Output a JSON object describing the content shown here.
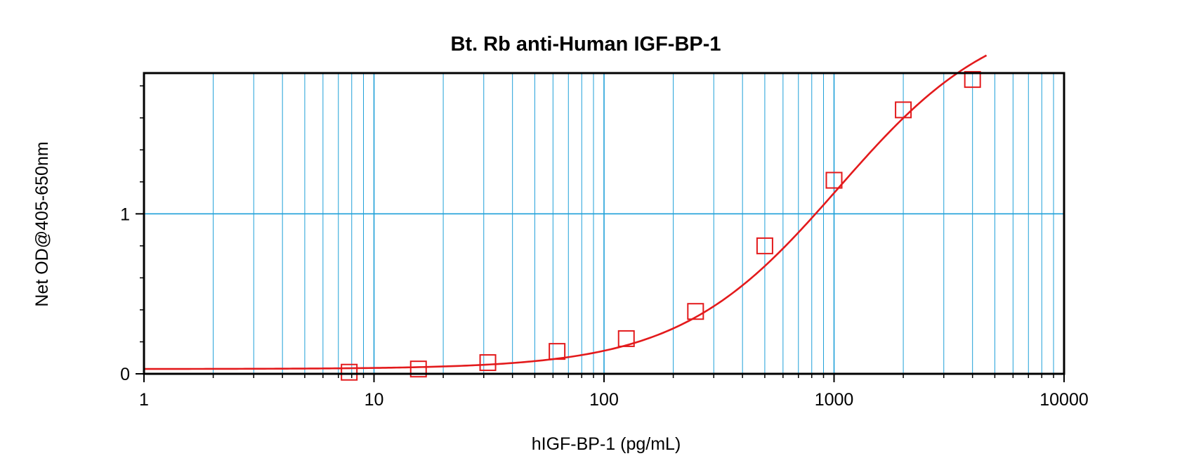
{
  "chart_data": {
    "type": "scatter",
    "title": "Bt. Rb anti-Human IGF-BP-1",
    "xlabel": "hIGF-BP-1 (pg/mL)",
    "ylabel": "Net OD@405-650nm",
    "x_scale": "log",
    "xlim": [
      1,
      10000
    ],
    "ylim": [
      0,
      1.88
    ],
    "x_ticks": [
      {
        "value": 1,
        "label": "1"
      },
      {
        "value": 10,
        "label": "10"
      },
      {
        "value": 100,
        "label": "100"
      },
      {
        "value": 1000,
        "label": "1000"
      },
      {
        "value": 10000,
        "label": "10000"
      }
    ],
    "y_ticks": [
      {
        "value": 0,
        "label": "0"
      },
      {
        "value": 1,
        "label": "1"
      }
    ],
    "y_minor_ticks": [
      0.2,
      0.4,
      0.6,
      0.8,
      1.2,
      1.4,
      1.6,
      1.8
    ],
    "grid": true,
    "series": [
      {
        "marker": "square",
        "points": [
          {
            "x": 7.8,
            "y": 0.01
          },
          {
            "x": 15.6,
            "y": 0.03
          },
          {
            "x": 31.25,
            "y": 0.07
          },
          {
            "x": 62.5,
            "y": 0.14
          },
          {
            "x": 125,
            "y": 0.22
          },
          {
            "x": 250,
            "y": 0.39
          },
          {
            "x": 500,
            "y": 0.8
          },
          {
            "x": 1000,
            "y": 1.21
          },
          {
            "x": 2000,
            "y": 1.65
          },
          {
            "x": 4000,
            "y": 1.84
          }
        ]
      }
    ],
    "fit_curve": {
      "a": 0.03,
      "d": 2.3,
      "c": 1050,
      "b": 1.25,
      "x_end": 4600
    },
    "colors": {
      "series": "#e31a1c",
      "grid": "#1fa0d8",
      "axis": "#000000"
    }
  }
}
